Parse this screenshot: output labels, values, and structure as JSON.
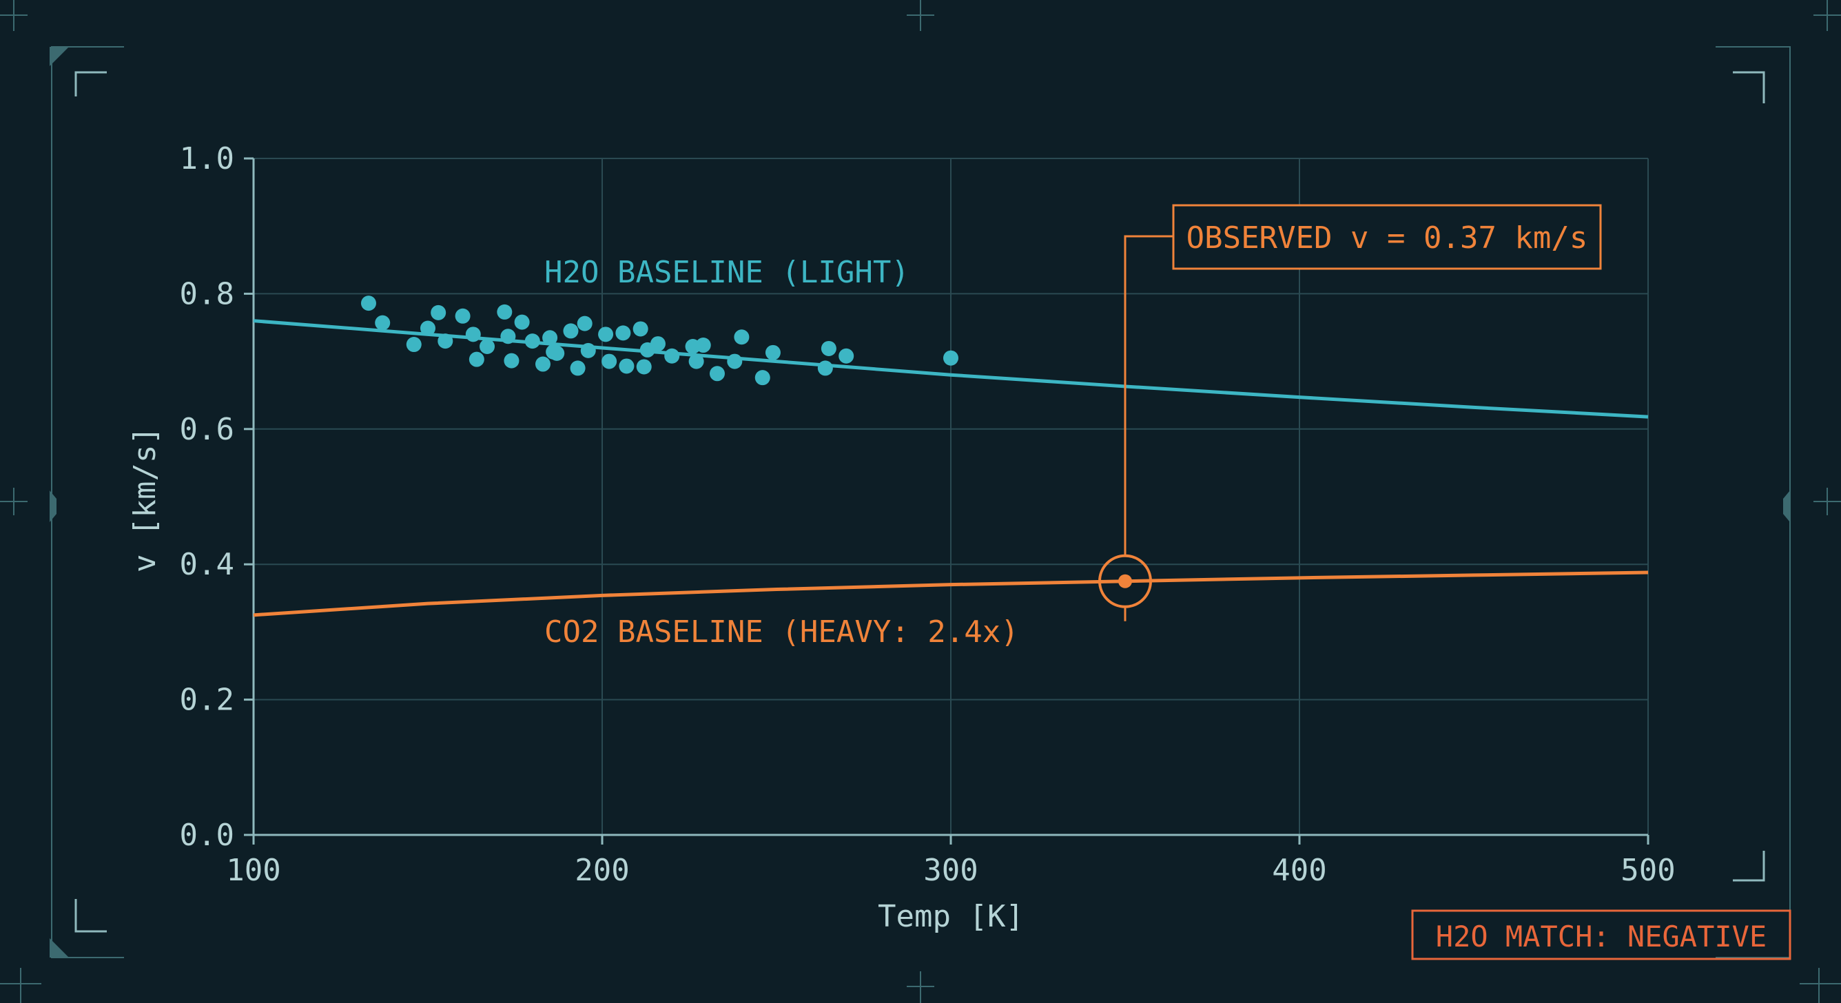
{
  "colors": {
    "background": "#0d1e26",
    "grid": "#2a4a52",
    "axis": "#8fb9bd",
    "frame": "#3c6a70",
    "text": "#b5d3d5",
    "h2o": "#3db6c4",
    "co2": "#f0833a",
    "warning": "#e8663a"
  },
  "chart_data": {
    "type": "scatter",
    "xlabel": "Temp [K]",
    "ylabel": "v [km/s]",
    "xlim": [
      100,
      500
    ],
    "ylim": [
      0,
      1.0
    ],
    "x_ticks": [
      100,
      200,
      300,
      400,
      500
    ],
    "x_tick_labels": [
      "100",
      "200",
      "300",
      "400",
      "500"
    ],
    "y_ticks": [
      0,
      0.2,
      0.4,
      0.6,
      0.8,
      1.0
    ],
    "y_tick_labels": [
      "0.0",
      "0.2",
      "0.4",
      "0.6",
      "0.8",
      "1.0"
    ],
    "grid": true,
    "series": [
      {
        "name": "H2O BASELINE (LIGHT)",
        "kind": "line",
        "color": "#3db6c4",
        "x": [
          100,
          150,
          200,
          250,
          300,
          350,
          400,
          450,
          500
        ],
        "y": [
          0.76,
          0.74,
          0.72,
          0.7,
          0.68,
          0.663,
          0.647,
          0.632,
          0.618
        ]
      },
      {
        "name": "CO2 BASELINE (HEAVY: 2.4x)",
        "kind": "line",
        "color": "#f0833a",
        "x": [
          100,
          150,
          200,
          250,
          300,
          350,
          400,
          450,
          500
        ],
        "y": [
          0.325,
          0.342,
          0.354,
          0.363,
          0.37,
          0.375,
          0.38,
          0.384,
          0.388
        ]
      },
      {
        "kind": "scatter",
        "color": "#3db6c4",
        "x": [
          133,
          137,
          146,
          150,
          153,
          155,
          160,
          163,
          164,
          167,
          172,
          173,
          174,
          177,
          180,
          183,
          185,
          186,
          187,
          191,
          193,
          195,
          196,
          201,
          202,
          206,
          207,
          211,
          212,
          213,
          216,
          220,
          226,
          227,
          229,
          233,
          238,
          240,
          246,
          249,
          264,
          265,
          270,
          300
        ],
        "y": [
          0.786,
          0.757,
          0.725,
          0.749,
          0.772,
          0.73,
          0.767,
          0.74,
          0.703,
          0.722,
          0.773,
          0.737,
          0.701,
          0.758,
          0.73,
          0.696,
          0.735,
          0.714,
          0.712,
          0.745,
          0.69,
          0.756,
          0.716,
          0.74,
          0.7,
          0.742,
          0.693,
          0.748,
          0.692,
          0.717,
          0.726,
          0.708,
          0.722,
          0.7,
          0.724,
          0.682,
          0.7,
          0.736,
          0.676,
          0.713,
          0.69,
          0.719,
          0.708,
          0.705
        ]
      }
    ],
    "annotations": {
      "observed": {
        "label": "OBSERVED v = 0.37 km/s",
        "x": 350,
        "y": 0.375
      },
      "h2o_line_label": "H2O BASELINE (LIGHT)",
      "co2_line_label": "CO2 BASELINE (HEAVY: 2.4x)"
    }
  },
  "status": {
    "match_label": "H2O MATCH: NEGATIVE"
  }
}
